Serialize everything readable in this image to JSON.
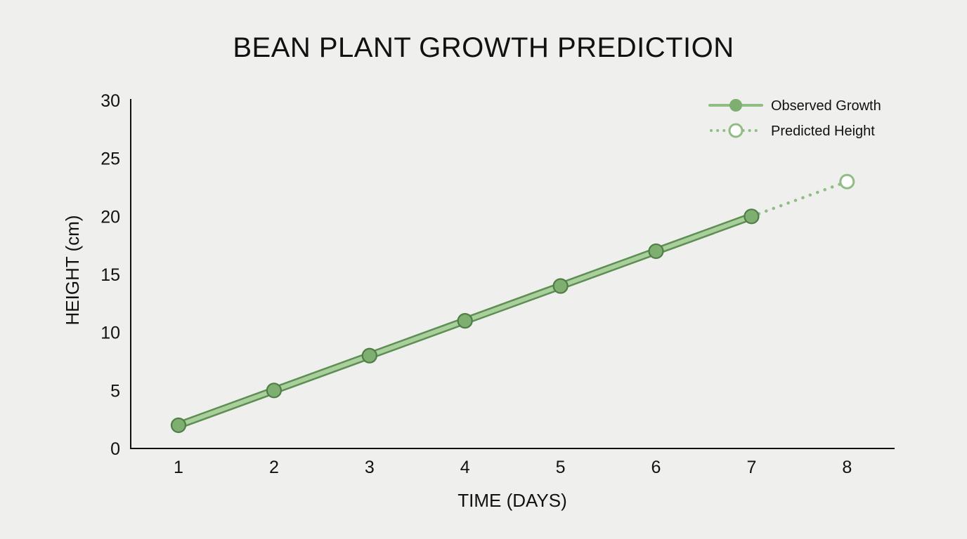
{
  "title": "BEAN PLANT GROWTH PREDICTION",
  "colors": {
    "background": "#efefee",
    "observed_fill": "#a9cf9c",
    "observed_edge": "#5e8f52",
    "marker_fill": "#7fae71",
    "marker_stroke": "#4f7d45",
    "predicted": "#8fbd84",
    "axis": "#111111"
  },
  "legend": {
    "observed": "Observed Growth",
    "predicted": "Predicted Height"
  },
  "chart_data": {
    "type": "line",
    "title": "BEAN PLANT GROWTH PREDICTION",
    "xlabel": "TIME (DAYS)",
    "ylabel": "HEIGHT (cm)",
    "x": [
      1,
      2,
      3,
      4,
      5,
      6,
      7,
      8
    ],
    "xlim": [
      0.5,
      8.5
    ],
    "ylim": [
      0,
      30
    ],
    "yticks": [
      0,
      5,
      10,
      15,
      20,
      25,
      30
    ],
    "xticks": [
      1,
      2,
      3,
      4,
      5,
      6,
      7,
      8
    ],
    "grid": false,
    "legend_position": "upper right",
    "series": [
      {
        "name": "Observed Growth",
        "style": "solid",
        "x": [
          1,
          2,
          3,
          4,
          5,
          6,
          7
        ],
        "values": [
          2,
          5,
          8,
          11,
          14,
          17,
          20
        ]
      },
      {
        "name": "Predicted Height",
        "style": "dotted",
        "x": [
          7,
          8
        ],
        "values": [
          20,
          23
        ]
      }
    ]
  }
}
